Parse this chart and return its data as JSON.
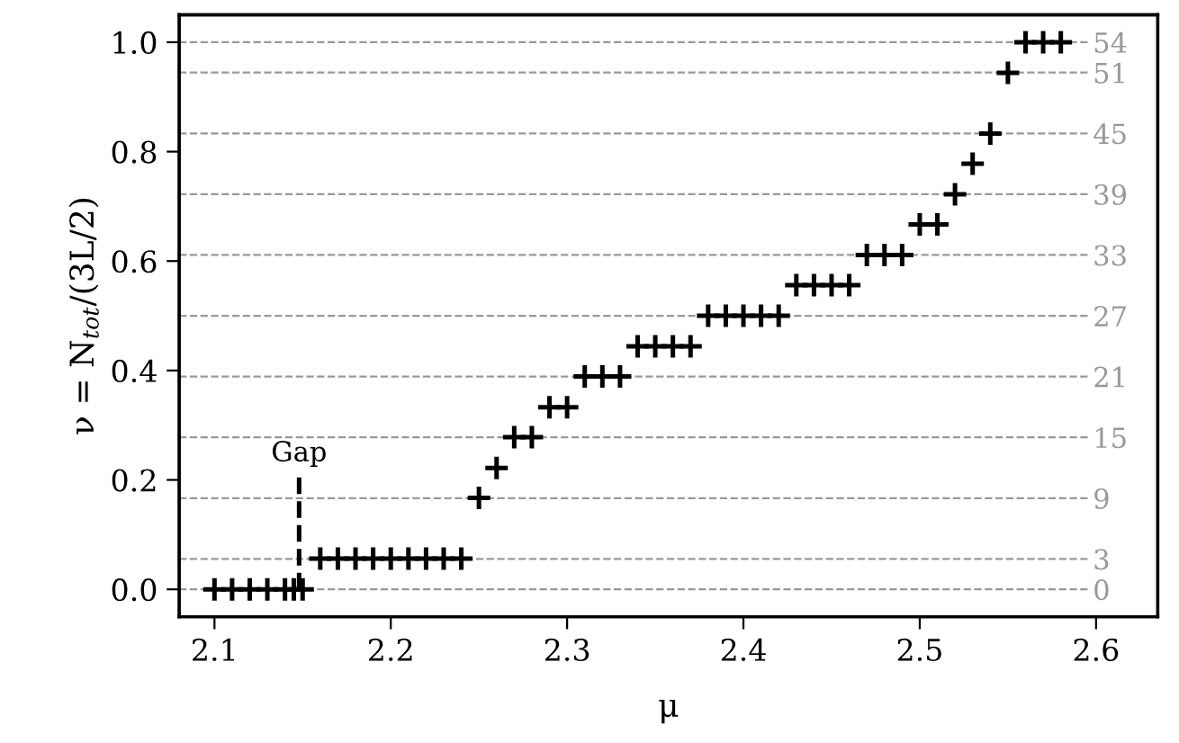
{
  "chart_data": {
    "type": "scatter",
    "xlabel": "μ",
    "ylabel": "ν = N$_{tot}$/(3L/2)",
    "xlim": [
      2.08,
      2.635
    ],
    "xticks": [
      {
        "value": 2.1,
        "label": "2.1"
      },
      {
        "value": 2.2,
        "label": "2.2"
      },
      {
        "value": 2.3,
        "label": "2.3"
      },
      {
        "value": 2.4,
        "label": "2.4"
      },
      {
        "value": 2.5,
        "label": "2.5"
      },
      {
        "value": 2.6,
        "label": "2.6"
      }
    ],
    "ylim": [
      -0.05,
      1.05
    ],
    "yticks": [
      {
        "value": 0,
        "label": "0.0"
      },
      {
        "value": 0.2,
        "label": "0.2"
      },
      {
        "value": 0.4,
        "label": "0.4"
      },
      {
        "value": 0.6,
        "label": "0.6"
      },
      {
        "value": 0.8,
        "label": "0.8"
      },
      {
        "value": 1.0,
        "label": "1.0"
      }
    ],
    "y2lim": [
      -2.7,
      56.7
    ],
    "y2ticks": [
      0,
      3,
      9,
      15,
      21,
      27,
      33,
      39,
      45,
      51,
      54
    ],
    "series": [
      {
        "color": "#000000",
        "marker": "cross",
        "x": [
          2.1,
          2.11,
          2.12,
          2.13,
          2.14,
          2.145,
          2.15,
          2.16,
          2.17,
          2.18,
          2.19,
          2.2,
          2.21,
          2.22,
          2.23,
          2.24,
          2.25,
          2.26,
          2.27,
          2.28,
          2.29,
          2.3,
          2.31,
          2.32,
          2.33,
          2.34,
          2.35,
          2.36,
          2.37,
          2.38,
          2.39,
          2.4,
          2.41,
          2.42,
          2.43,
          2.44,
          2.45,
          2.46,
          2.47,
          2.48,
          2.49,
          2.5,
          2.51,
          2.52,
          2.53,
          2.54,
          2.55,
          2.56,
          2.57,
          2.58
        ],
        "values": [
          0,
          0,
          0,
          0,
          0,
          0,
          0,
          0.056,
          0.056,
          0.056,
          0.056,
          0.056,
          0.056,
          0.056,
          0.056,
          0.056,
          0.167,
          0.222,
          0.278,
          0.278,
          0.333,
          0.333,
          0.389,
          0.389,
          0.389,
          0.444,
          0.444,
          0.444,
          0.444,
          0.5,
          0.5,
          0.5,
          0.5,
          0.5,
          0.556,
          0.556,
          0.556,
          0.556,
          0.611,
          0.611,
          0.611,
          0.667,
          0.667,
          0.722,
          0.778,
          0.833,
          0.944,
          1.0,
          1.0,
          1.0
        ]
      },
      {
        "type": "line",
        "color": "#000000",
        "line_style": "dashed",
        "x": [
          2.148,
          2.148
        ],
        "values": [
          0,
          0.21
        ]
      }
    ],
    "annotations": [
      {
        "text": "Gap",
        "x": 2.148,
        "y": 0.21
      }
    ],
    "ref_lines": [
      {
        "axis": "y2",
        "value": 0,
        "color": "#999999",
        "line_style": "dashed"
      },
      {
        "axis": "y2",
        "value": 3,
        "color": "#999999",
        "line_style": "dashed"
      },
      {
        "axis": "y2",
        "value": 9,
        "color": "#999999",
        "line_style": "dashed"
      },
      {
        "axis": "y2",
        "value": 15,
        "color": "#999999",
        "line_style": "dashed"
      },
      {
        "axis": "y2",
        "value": 21,
        "color": "#999999",
        "line_style": "dashed"
      },
      {
        "axis": "y2",
        "value": 27,
        "color": "#999999",
        "line_style": "dashed"
      },
      {
        "axis": "y2",
        "value": 33,
        "color": "#999999",
        "line_style": "dashed"
      },
      {
        "axis": "y2",
        "value": 39,
        "color": "#999999",
        "line_style": "dashed"
      },
      {
        "axis": "y2",
        "value": 45,
        "color": "#999999",
        "line_style": "dashed"
      },
      {
        "axis": "y2",
        "value": 51,
        "color": "#999999",
        "line_style": "dashed"
      },
      {
        "axis": "y2",
        "value": 54,
        "color": "#999999",
        "line_style": "dashed"
      }
    ]
  }
}
